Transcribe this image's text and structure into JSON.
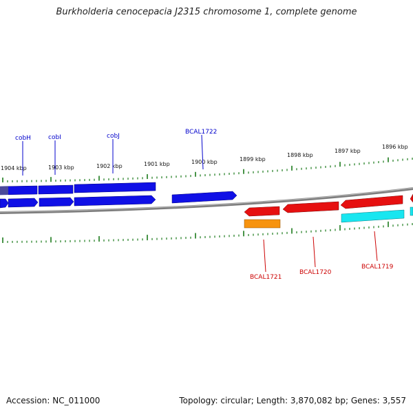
{
  "title": "Burkholderia cenocepacia J2315 chromosome 1, complete genome",
  "footer": {
    "accession": "Accession: NC_011000",
    "topology": "Topology: circular; Length: 3,870,082 bp; Genes: 3,557"
  },
  "colors": {
    "forward_gene": "#1010e6",
    "reverse_gene": "#e61010",
    "cds_orange": "#f7930f",
    "cds_cyan": "#19e6f0",
    "backbone": "#7d7d7d",
    "ticks": "#1a7a1a",
    "forward_label": "#0000cc",
    "reverse_label": "#cc0000"
  },
  "kbp_ticks": [
    "1904 kbp",
    "1903 kbp",
    "1902 kbp",
    "1901 kbp",
    "1900 kbp",
    "1899 kbp",
    "1898 kbp",
    "1897 kbp",
    "1896 kbp"
  ],
  "forward_labels": [
    "cobH",
    "cobI",
    "cobJ",
    "BCAL1722"
  ],
  "reverse_labels": [
    "BCAL1721",
    "BCAL1720",
    "BCAL1719"
  ]
}
